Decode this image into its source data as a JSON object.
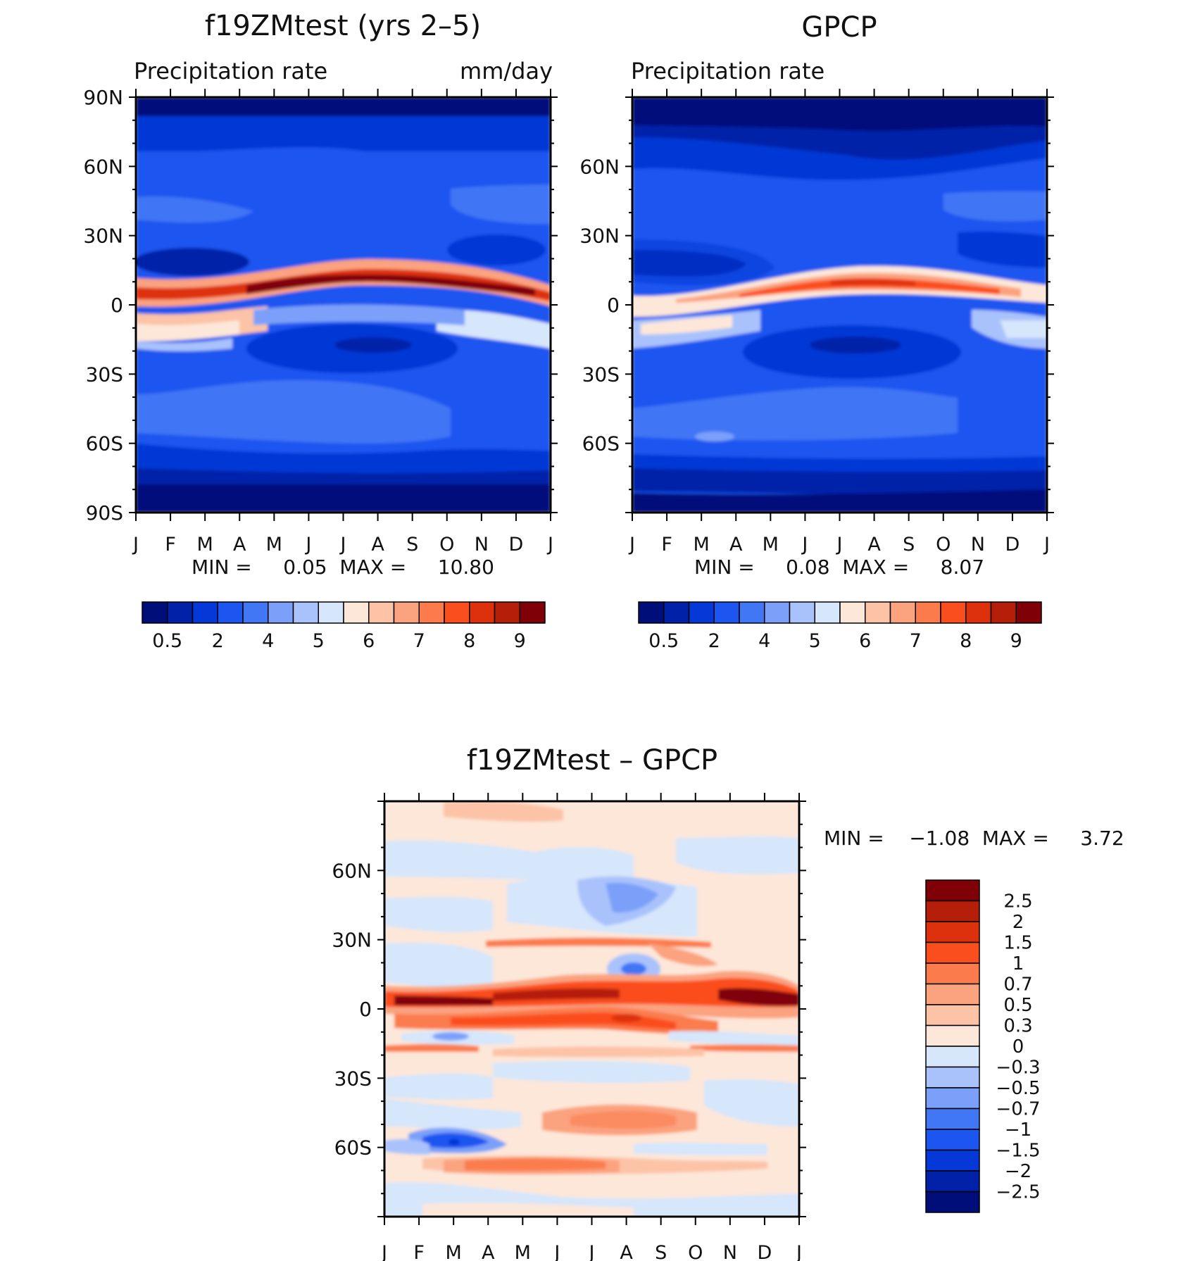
{
  "colors": {
    "abs_palette": [
      "#000e7a",
      "#0221a9",
      "#0538d6",
      "#1c55f0",
      "#4176f5",
      "#7ca0f9",
      "#a9c2fb",
      "#d6e6fb",
      "#fde7d9",
      "#fcc3a6",
      "#fba27f",
      "#fb7b4d",
      "#fb4e1f",
      "#dd300d",
      "#b51e08",
      "#800008"
    ],
    "diff_palette": [
      "#000e7a",
      "#0221a9",
      "#0538d6",
      "#1c55f0",
      "#4176f5",
      "#7ca0f9",
      "#a9c2fb",
      "#d6e6fb",
      "#fde7d9",
      "#fcc3a6",
      "#fba27f",
      "#fb7b4d",
      "#fb4e1f",
      "#dd300d",
      "#b51e08",
      "#800008"
    ]
  },
  "chart_data": [
    {
      "type": "heatmap",
      "title": "f19ZMtest (yrs 2–5)",
      "subtitle_left": "Precipitation rate",
      "subtitle_right": "mm/day",
      "x": [
        "J",
        "F",
        "M",
        "A",
        "M",
        "J",
        "J",
        "A",
        "S",
        "O",
        "N",
        "D",
        "J"
      ],
      "y_ticks": [
        "90N",
        "60N",
        "30N",
        "0",
        "30S",
        "60S",
        "90S"
      ],
      "ylim": [
        -90,
        90
      ],
      "stats": "MIN =     0.05  MAX =     10.80",
      "colorbar": {
        "orientation": "horizontal",
        "labels": [
          "0.5",
          "2",
          "4",
          "5",
          "6",
          "7",
          "8",
          "9"
        ]
      },
      "features": {
        "itcz_peak": 10.8,
        "itcz_lat": 7,
        "polar_min": 0.05
      }
    },
    {
      "type": "heatmap",
      "title": "GPCP",
      "subtitle_left": "Precipitation rate",
      "subtitle_right": "",
      "x": [
        "J",
        "F",
        "M",
        "A",
        "M",
        "J",
        "J",
        "A",
        "S",
        "O",
        "N",
        "D",
        "J"
      ],
      "y_ticks": [
        "60N",
        "30N",
        "0",
        "30S",
        "60S"
      ],
      "ylim": [
        -90,
        90
      ],
      "stats": "MIN =     0.08  MAX =     8.07",
      "colorbar": {
        "orientation": "horizontal",
        "labels": [
          "0.5",
          "2",
          "4",
          "5",
          "6",
          "7",
          "8",
          "9"
        ]
      },
      "features": {
        "itcz_peak": 8.07,
        "itcz_lat": 6,
        "polar_min": 0.08
      }
    },
    {
      "type": "heatmap",
      "title": "f19ZMtest – GPCP",
      "x": [
        "J",
        "F",
        "M",
        "A",
        "M",
        "J",
        "J",
        "A",
        "S",
        "O",
        "N",
        "D",
        "J"
      ],
      "y_ticks": [
        "60N",
        "30N",
        "0",
        "30S",
        "60S"
      ],
      "ylim": [
        -90,
        90
      ],
      "stats": "MIN =    −1.08  MAX =     3.72",
      "colorbar": {
        "orientation": "vertical",
        "labels": [
          "2.5",
          "2",
          "1.5",
          "1",
          "0.7",
          "0.5",
          "0.3",
          "0",
          "−0.3",
          "−0.5",
          "−0.7",
          "−1",
          "−1.5",
          "−2",
          "−2.5"
        ]
      },
      "features": {
        "min": -1.08,
        "max": 3.72
      }
    }
  ]
}
